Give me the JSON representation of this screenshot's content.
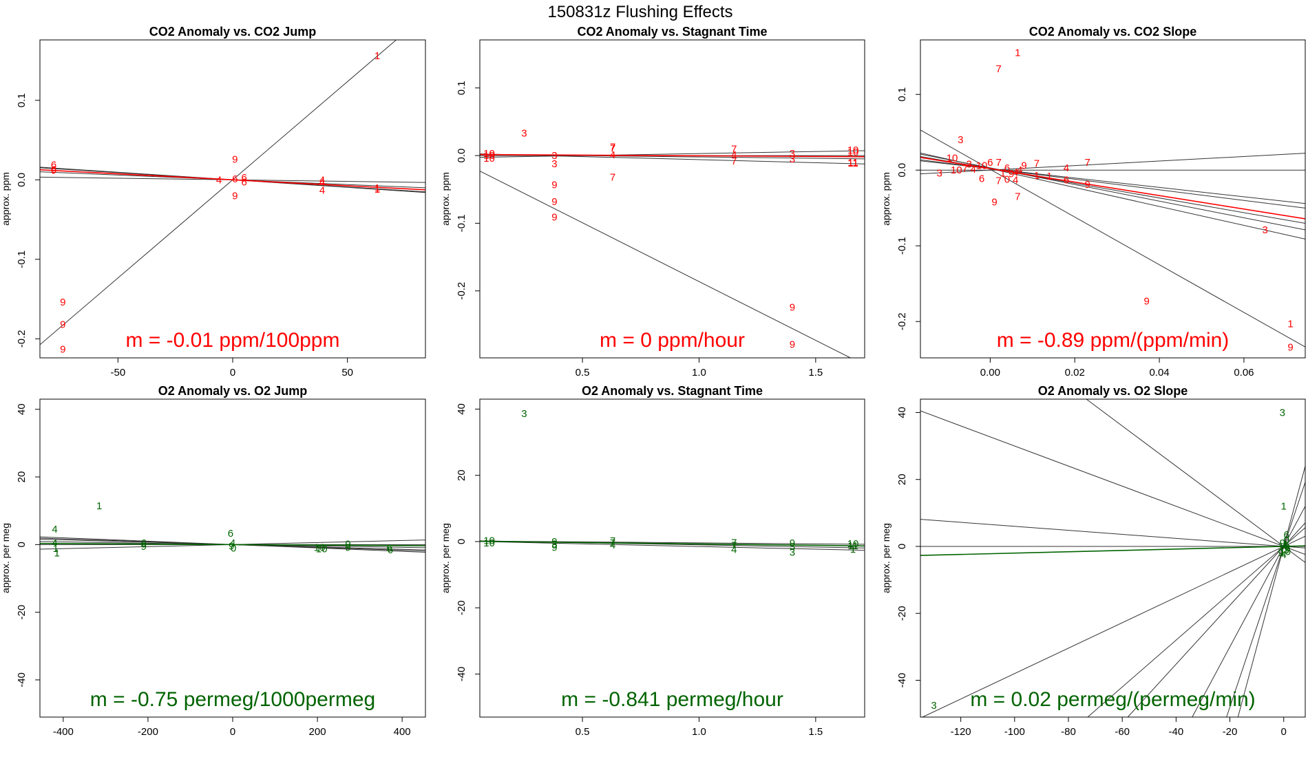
{
  "figure_title": "150831z   Flushing Effects",
  "colors": {
    "co2": "#ff0000",
    "o2": "#006400",
    "fit": "#333333",
    "frame": "#000000"
  },
  "chart_data": [
    {
      "type": "scatter",
      "title": "CO2 Anomaly vs. CO2 Jump",
      "ylabel": "approx. ppm",
      "xlim": [
        -84,
        84
      ],
      "ylim": [
        -0.224,
        0.176
      ],
      "xticks": [
        -50,
        0,
        50
      ],
      "xtick_labels": [
        "-50",
        "0",
        "50"
      ],
      "yticks": [
        -0.2,
        -0.1,
        0,
        0.1
      ],
      "ytick_labels": [
        "-0.2",
        "-0.1",
        "0.0",
        "0.1"
      ],
      "slope_label": "m = -0.01 ppm/100ppm",
      "points": [
        {
          "x": 63,
          "y": 0.156,
          "label": "1"
        },
        {
          "x": -78,
          "y": 0.019,
          "label": "6"
        },
        {
          "x": -78,
          "y": 0.013,
          "label": "6"
        },
        {
          "x": -78,
          "y": 0.012,
          "label": "9"
        },
        {
          "x": 1,
          "y": 0.026,
          "label": "9"
        },
        {
          "x": -6,
          "y": 0.0,
          "label": "4"
        },
        {
          "x": 1,
          "y": 0.001,
          "label": "6"
        },
        {
          "x": 5,
          "y": 0.003,
          "label": "6"
        },
        {
          "x": 5,
          "y": -0.003,
          "label": "6"
        },
        {
          "x": 1,
          "y": -0.02,
          "label": "9"
        },
        {
          "x": 39,
          "y": 0.0,
          "label": "4"
        },
        {
          "x": 39,
          "y": -0.003,
          "label": "4"
        },
        {
          "x": 39,
          "y": -0.013,
          "label": "4"
        },
        {
          "x": 63,
          "y": -0.01,
          "label": "1"
        },
        {
          "x": 63,
          "y": -0.012,
          "label": "1"
        },
        {
          "x": -74,
          "y": -0.154,
          "label": "9"
        },
        {
          "x": -74,
          "y": -0.182,
          "label": "9"
        },
        {
          "x": -74,
          "y": -0.213,
          "label": "9"
        }
      ],
      "fit_lines": [
        {
          "a": 0,
          "b": 0.00247
        },
        {
          "a": 0,
          "b": -0.00018
        },
        {
          "a": 0,
          "b": -0.00012
        },
        {
          "a": 0,
          "b": -4e-05
        },
        {
          "a": 0,
          "b": -0.00019
        }
      ],
      "mean_line": {
        "a": 0,
        "b": -0.00015
      }
    },
    {
      "type": "scatter",
      "title": "CO2 Anomaly vs. Stagnant Time",
      "ylabel": "approx. ppm",
      "xlim": [
        0.06,
        1.71
      ],
      "ylim": [
        -0.299,
        0.171
      ],
      "xticks": [
        0.5,
        1.0,
        1.5
      ],
      "xtick_labels": [
        "0.5",
        "1.0",
        "1.5"
      ],
      "yticks": [
        -0.2,
        -0.1,
        0,
        0.1
      ],
      "ytick_labels": [
        "-0.2",
        "-0.1",
        "0.0",
        "0.1"
      ],
      "slope_label": "m = 0 ppm/hour",
      "points": [
        {
          "x": 0.25,
          "y": 0.033,
          "label": "3"
        },
        {
          "x": 0.1,
          "y": 0.003,
          "label": "10"
        },
        {
          "x": 0.1,
          "y": 0.0,
          "label": "10"
        },
        {
          "x": 0.1,
          "y": -0.004,
          "label": "10"
        },
        {
          "x": 0.38,
          "y": 0.0,
          "label": "3"
        },
        {
          "x": 0.38,
          "y": -0.012,
          "label": "3"
        },
        {
          "x": 0.38,
          "y": -0.043,
          "label": "9"
        },
        {
          "x": 0.38,
          "y": -0.068,
          "label": "9"
        },
        {
          "x": 0.38,
          "y": -0.091,
          "label": "9"
        },
        {
          "x": 0.63,
          "y": 0.013,
          "label": "7"
        },
        {
          "x": 0.63,
          "y": 0.011,
          "label": "7"
        },
        {
          "x": 0.63,
          "y": 0.001,
          "label": "4"
        },
        {
          "x": 0.63,
          "y": -0.032,
          "label": "7"
        },
        {
          "x": 1.15,
          "y": 0.01,
          "label": "7"
        },
        {
          "x": 1.15,
          "y": 0.001,
          "label": "4"
        },
        {
          "x": 1.15,
          "y": -0.008,
          "label": "7"
        },
        {
          "x": 1.4,
          "y": 0.003,
          "label": "3"
        },
        {
          "x": 1.4,
          "y": -0.005,
          "label": "3"
        },
        {
          "x": 1.4,
          "y": -0.224,
          "label": "9"
        },
        {
          "x": 1.4,
          "y": -0.279,
          "label": "9"
        },
        {
          "x": 1.66,
          "y": 0.008,
          "label": "10"
        },
        {
          "x": 1.66,
          "y": 0.005,
          "label": "10"
        },
        {
          "x": 1.66,
          "y": -0.01,
          "label": "11"
        },
        {
          "x": 1.66,
          "y": -0.011,
          "label": "11"
        }
      ],
      "fit_lines": [
        {
          "a": -0.0124,
          "b": -0.1738
        },
        {
          "a": -0.003,
          "b": 0.006
        },
        {
          "a": 0.002,
          "b": -0.004
        },
        {
          "a": 0.003,
          "b": -0.009
        },
        {
          "a": 0.0,
          "b": 0.0
        }
      ],
      "mean_line": {
        "a": 0.0017,
        "b": -0.002
      }
    },
    {
      "type": "scatter",
      "title": "CO2 Anomaly vs. CO2 Slope",
      "ylabel": "approx. ppm",
      "xlim": [
        -0.0165,
        0.0745
      ],
      "ylim": [
        -0.248,
        0.172
      ],
      "xticks": [
        0,
        0.02,
        0.04,
        0.06
      ],
      "xtick_labels": [
        "0.00",
        "0.02",
        "0.04",
        "0.06"
      ],
      "yticks": [
        -0.2,
        -0.1,
        0,
        0.1
      ],
      "ytick_labels": [
        "-0.2",
        "-0.1",
        "0.0",
        "0.1"
      ],
      "slope_label": "m = -0.89 ppm/(ppm/min)",
      "points": [
        {
          "x": 0.0065,
          "y": 0.155,
          "label": "1"
        },
        {
          "x": 0.002,
          "y": 0.134,
          "label": "7"
        },
        {
          "x": -0.007,
          "y": 0.04,
          "label": "3"
        },
        {
          "x": -0.009,
          "y": 0.016,
          "label": "10"
        },
        {
          "x": -0.005,
          "y": 0.008,
          "label": "3"
        },
        {
          "x": -0.002,
          "y": 0.006,
          "label": "10"
        },
        {
          "x": 0.0,
          "y": 0.01,
          "label": "6"
        },
        {
          "x": 0.002,
          "y": 0.01,
          "label": "7"
        },
        {
          "x": 0.004,
          "y": 0.003,
          "label": "6"
        },
        {
          "x": -0.008,
          "y": 0.0,
          "label": "10"
        },
        {
          "x": -0.006,
          "y": 0.002,
          "label": "7"
        },
        {
          "x": -0.004,
          "y": 0.001,
          "label": "4"
        },
        {
          "x": -0.012,
          "y": -0.004,
          "label": "3"
        },
        {
          "x": -0.002,
          "y": -0.011,
          "label": "6"
        },
        {
          "x": 0.003,
          "y": -0.004,
          "label": "1"
        },
        {
          "x": 0.005,
          "y": -0.005,
          "label": "9"
        },
        {
          "x": 0.006,
          "y": -0.003,
          "label": "4"
        },
        {
          "x": 0.007,
          "y": 0.0,
          "label": "4"
        },
        {
          "x": 0.004,
          "y": -0.012,
          "label": "0"
        },
        {
          "x": 0.006,
          "y": -0.013,
          "label": "4"
        },
        {
          "x": 0.002,
          "y": -0.014,
          "label": "7"
        },
        {
          "x": 0.008,
          "y": 0.006,
          "label": "9"
        },
        {
          "x": 0.011,
          "y": 0.009,
          "label": "7"
        },
        {
          "x": 0.011,
          "y": -0.007,
          "label": "1"
        },
        {
          "x": 0.014,
          "y": -0.008,
          "label": "1"
        },
        {
          "x": 0.018,
          "y": 0.003,
          "label": "4"
        },
        {
          "x": 0.023,
          "y": 0.01,
          "label": "7"
        },
        {
          "x": 0.018,
          "y": -0.013,
          "label": "6"
        },
        {
          "x": 0.023,
          "y": -0.019,
          "label": "9"
        },
        {
          "x": 0.001,
          "y": -0.042,
          "label": "9"
        },
        {
          "x": 0.0065,
          "y": -0.035,
          "label": "7"
        },
        {
          "x": 0.065,
          "y": -0.079,
          "label": "3"
        },
        {
          "x": 0.037,
          "y": -0.173,
          "label": "9"
        },
        {
          "x": 0.071,
          "y": -0.203,
          "label": "1"
        },
        {
          "x": 0.071,
          "y": -0.234,
          "label": "9"
        }
      ],
      "fit_lines": [
        {
          "a": 0,
          "b": 0.3
        },
        {
          "a": 0,
          "b": 0.0
        },
        {
          "a": 0.002,
          "b": -0.62
        },
        {
          "a": 0.002,
          "b": -0.97
        },
        {
          "a": 0.003,
          "b": -1.1
        },
        {
          "a": 0.002,
          "b": -1.25
        },
        {
          "a": 0.001,
          "b": -3.15
        },
        {
          "a": 0.002,
          "b": -0.7
        }
      ],
      "mean_line": {
        "a": 0.002,
        "b": -0.89
      }
    },
    {
      "type": "scatter",
      "title": "O2 Anomaly vs. O2 Jump",
      "ylabel": "approx. per meg",
      "xlim": [
        -455,
        455
      ],
      "ylim": [
        -51,
        43
      ],
      "xticks": [
        -400,
        -200,
        0,
        200,
        400
      ],
      "xtick_labels": [
        "-400",
        "-200",
        "0",
        "200",
        "400"
      ],
      "yticks": [
        -40,
        -20,
        0,
        20,
        40
      ],
      "ytick_labels": [
        "-40",
        "-20",
        "0",
        "20",
        "40"
      ],
      "slope_label": "m = -0.75 permeg/1000permeg",
      "points": [
        {
          "x": -315,
          "y": 11.5,
          "label": "1"
        },
        {
          "x": -420,
          "y": 4.5,
          "label": "4"
        },
        {
          "x": -420,
          "y": 0.5,
          "label": "4"
        },
        {
          "x": -418,
          "y": -1.2,
          "label": "1"
        },
        {
          "x": -415,
          "y": -2.5,
          "label": "1"
        },
        {
          "x": -210,
          "y": 0.5,
          "label": "6"
        },
        {
          "x": -210,
          "y": -0.5,
          "label": "9"
        },
        {
          "x": -5,
          "y": 3.3,
          "label": "6"
        },
        {
          "x": 0,
          "y": 0.5,
          "label": "4"
        },
        {
          "x": -3,
          "y": -0.4,
          "label": "9"
        },
        {
          "x": 2,
          "y": -1.0,
          "label": "0"
        },
        {
          "x": 205,
          "y": -0.8,
          "label": "10"
        },
        {
          "x": 210,
          "y": -1.3,
          "label": "10"
        },
        {
          "x": 272,
          "y": 0.2,
          "label": "9"
        },
        {
          "x": 272,
          "y": -0.8,
          "label": "9"
        },
        {
          "x": 370,
          "y": -1.0,
          "label": "6"
        },
        {
          "x": 372,
          "y": -1.6,
          "label": "6"
        }
      ],
      "fit_lines": [
        {
          "a": 0,
          "b": -0.0042
        },
        {
          "a": 0,
          "b": -0.0035
        },
        {
          "a": 0,
          "b": -0.002
        },
        {
          "a": 0,
          "b": 0.003
        },
        {
          "a": 0,
          "b": -0.005
        },
        {
          "a": 0,
          "b": 0.0
        }
      ],
      "mean_line": {
        "a": 0,
        "b": -0.00075
      }
    },
    {
      "type": "scatter",
      "title": "O2 Anomaly vs. Stagnant Time",
      "ylabel": "approx. per meg",
      "xlim": [
        0.06,
        1.71
      ],
      "ylim": [
        -53,
        43
      ],
      "xticks": [
        0.5,
        1.0,
        1.5
      ],
      "xtick_labels": [
        "0.5",
        "1.0",
        "1.5"
      ],
      "yticks": [
        -40,
        -20,
        0,
        20,
        40
      ],
      "ytick_labels": [
        "-40",
        "-20",
        "0",
        "20",
        "40"
      ],
      "slope_label": "m = -0.841 permeg/hour",
      "points": [
        {
          "x": 0.25,
          "y": 38.6,
          "label": "3"
        },
        {
          "x": 0.1,
          "y": 0.3,
          "label": "10"
        },
        {
          "x": 0.1,
          "y": -0.4,
          "label": "10"
        },
        {
          "x": 0.38,
          "y": 0.0,
          "label": "9"
        },
        {
          "x": 0.38,
          "y": -0.7,
          "label": "3"
        },
        {
          "x": 0.38,
          "y": -1.8,
          "label": "9"
        },
        {
          "x": 0.63,
          "y": 0.2,
          "label": "7"
        },
        {
          "x": 0.63,
          "y": -0.4,
          "label": "7"
        },
        {
          "x": 0.63,
          "y": -1.0,
          "label": "4"
        },
        {
          "x": 1.15,
          "y": -0.3,
          "label": "7"
        },
        {
          "x": 1.15,
          "y": -1.2,
          "label": "7"
        },
        {
          "x": 1.15,
          "y": -2.4,
          "label": "4"
        },
        {
          "x": 1.4,
          "y": -0.4,
          "label": "9"
        },
        {
          "x": 1.4,
          "y": -1.5,
          "label": "3"
        },
        {
          "x": 1.4,
          "y": -3.2,
          "label": "3"
        },
        {
          "x": 1.66,
          "y": -0.6,
          "label": "10"
        },
        {
          "x": 1.66,
          "y": -1.3,
          "label": "11"
        },
        {
          "x": 1.66,
          "y": -2.3,
          "label": "1"
        }
      ],
      "fit_lines": [
        {
          "a": 0.3,
          "b": -1.3
        },
        {
          "a": 0.2,
          "b": -0.6
        },
        {
          "a": 0.1,
          "b": -1.6
        },
        {
          "a": 0.2,
          "b": -0.9
        }
      ],
      "mean_line": {
        "a": 0.12,
        "b": -0.841
      }
    },
    {
      "type": "scatter",
      "title": "O2 Anomaly vs. O2 Slope",
      "ylabel": "approx. per meg",
      "xlim": [
        -135,
        8
      ],
      "ylim": [
        -51,
        44
      ],
      "xticks": [
        -120,
        -100,
        -80,
        -60,
        -40,
        -20,
        0
      ],
      "xtick_labels": [
        "-120",
        "-100",
        "-80",
        "-60",
        "-40",
        "-20",
        "0"
      ],
      "yticks": [
        -40,
        -20,
        0,
        20,
        40
      ],
      "ytick_labels": [
        "-40",
        "-20",
        "0",
        "20",
        "40"
      ],
      "slope_label": "m = 0.02 permeg/(permeg/min)",
      "points": [
        {
          "x": -0.5,
          "y": 40,
          "label": "3"
        },
        {
          "x": 0,
          "y": 12,
          "label": "1"
        },
        {
          "x": 1,
          "y": 3.5,
          "label": "6"
        },
        {
          "x": 1,
          "y": 2,
          "label": "0"
        },
        {
          "x": -0.5,
          "y": 1,
          "label": "9"
        },
        {
          "x": 0.5,
          "y": 0.5,
          "label": "4"
        },
        {
          "x": 0,
          "y": 0,
          "label": "10"
        },
        {
          "x": 1.5,
          "y": -0.5,
          "label": "6"
        },
        {
          "x": -0.5,
          "y": -1,
          "label": "7"
        },
        {
          "x": 0.5,
          "y": -1.5,
          "label": "10"
        },
        {
          "x": -1,
          "y": -2,
          "label": "9"
        },
        {
          "x": 0,
          "y": -2.5,
          "label": "4"
        },
        {
          "x": 1,
          "y": -1,
          "label": "3"
        },
        {
          "x": -130,
          "y": -47.5,
          "label": "3"
        }
      ],
      "fit_lines": [
        {
          "a": 0,
          "b": -0.6
        },
        {
          "a": 0,
          "b": -0.3
        },
        {
          "a": 0,
          "b": -0.06
        },
        {
          "a": 0,
          "b": 0.0
        },
        {
          "a": 0,
          "b": 0.38
        },
        {
          "a": 0,
          "b": 0.88
        },
        {
          "a": 0,
          "b": 2.4
        },
        {
          "a": 0,
          "b": 3.0
        },
        {
          "a": 0,
          "b": 1.5
        },
        {
          "a": 0,
          "b": 0.7
        }
      ],
      "mean_line": {
        "a": 0,
        "b": 0.02
      }
    }
  ]
}
